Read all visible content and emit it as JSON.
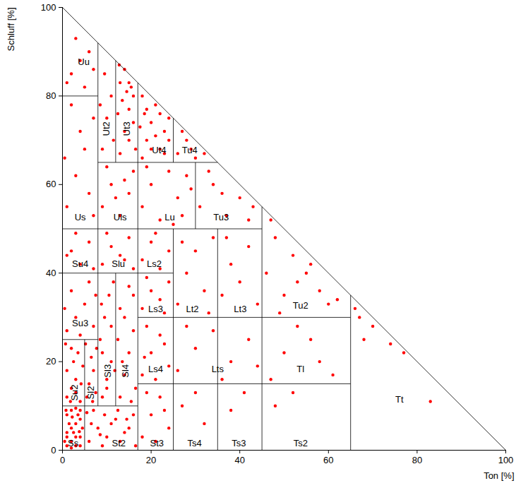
{
  "chart_data": {
    "type": "scatter",
    "xlabel": "Ton [%]",
    "ylabel": "Schluff [%]",
    "xlim": [
      0,
      100
    ],
    "ylim": [
      0,
      100
    ],
    "xticks": [
      0,
      20,
      40,
      60,
      80,
      100
    ],
    "yticks": [
      0,
      20,
      40,
      60,
      80,
      100
    ],
    "color": "#ff0000",
    "marker": "circle",
    "points": [
      [
        1,
        1
      ],
      [
        2,
        2
      ],
      [
        3,
        1
      ],
      [
        4,
        3
      ],
      [
        1,
        4
      ],
      [
        2,
        5
      ],
      [
        3,
        6
      ],
      [
        4,
        7
      ],
      [
        1,
        8
      ],
      [
        2,
        9
      ],
      [
        3,
        3
      ],
      [
        0.5,
        2
      ],
      [
        4,
        1
      ],
      [
        2.5,
        4
      ],
      [
        3.5,
        8
      ],
      [
        1.5,
        6
      ],
      [
        0.8,
        9
      ],
      [
        4.5,
        5
      ],
      [
        2,
        0.5
      ],
      [
        3,
        9.5
      ],
      [
        1,
        3
      ],
      [
        4,
        9
      ],
      [
        2.2,
        7.5
      ],
      [
        3.8,
        4.2
      ],
      [
        1,
        12
      ],
      [
        2,
        14
      ],
      [
        3,
        16
      ],
      [
        4,
        11
      ],
      [
        1,
        18
      ],
      [
        2.5,
        20
      ],
      [
        3.5,
        22
      ],
      [
        4.2,
        15
      ],
      [
        0.7,
        24
      ],
      [
        1.8,
        11
      ],
      [
        3,
        13
      ],
      [
        4.6,
        19
      ],
      [
        2,
        23
      ],
      [
        5.5,
        12
      ],
      [
        6,
        15
      ],
      [
        7,
        18
      ],
      [
        6.5,
        21
      ],
      [
        7.5,
        13
      ],
      [
        5.2,
        24
      ],
      [
        6.8,
        11
      ],
      [
        7.7,
        23
      ],
      [
        1,
        27
      ],
      [
        3,
        30
      ],
      [
        5,
        33
      ],
      [
        7,
        28
      ],
      [
        2,
        36
      ],
      [
        6,
        38
      ],
      [
        4,
        26
      ],
      [
        0.5,
        32
      ],
      [
        7.5,
        35
      ],
      [
        1,
        44
      ],
      [
        4,
        42
      ],
      [
        6,
        47
      ],
      [
        3,
        49
      ],
      [
        7,
        41
      ],
      [
        2,
        45
      ],
      [
        1,
        55
      ],
      [
        3,
        62
      ],
      [
        5,
        68
      ],
      [
        7,
        75
      ],
      [
        2,
        78
      ],
      [
        6,
        58
      ],
      [
        0.5,
        66
      ],
      [
        4,
        72
      ],
      [
        7,
        53
      ],
      [
        2,
        85
      ],
      [
        4,
        88
      ],
      [
        6,
        90
      ],
      [
        3,
        93
      ],
      [
        5,
        82
      ],
      [
        7,
        86
      ],
      [
        1,
        83
      ],
      [
        6,
        2
      ],
      [
        8,
        5
      ],
      [
        10,
        3
      ],
      [
        12,
        7
      ],
      [
        14,
        4
      ],
      [
        16,
        8
      ],
      [
        7,
        9
      ],
      [
        9,
        1
      ],
      [
        11,
        6
      ],
      [
        13,
        2
      ],
      [
        15,
        5
      ],
      [
        6.5,
        6
      ],
      [
        9.5,
        8
      ],
      [
        12.5,
        9
      ],
      [
        16.5,
        1
      ],
      [
        8.5,
        3.5
      ],
      [
        5.5,
        8.5
      ],
      [
        14.5,
        7
      ],
      [
        9,
        12
      ],
      [
        10,
        16
      ],
      [
        11,
        20
      ],
      [
        8.5,
        25
      ],
      [
        9.5,
        30
      ],
      [
        10.5,
        35
      ],
      [
        11.5,
        38
      ],
      [
        9,
        22
      ],
      [
        11,
        28
      ],
      [
        10,
        14
      ],
      [
        8.8,
        33
      ],
      [
        11.8,
        18
      ],
      [
        13,
        12
      ],
      [
        14,
        17
      ],
      [
        15,
        22
      ],
      [
        16,
        27
      ],
      [
        13,
        32
      ],
      [
        15,
        37
      ],
      [
        16.5,
        14
      ],
      [
        12.5,
        25
      ],
      [
        14,
        30
      ],
      [
        16,
        35
      ],
      [
        13.5,
        20
      ],
      [
        15.5,
        11
      ],
      [
        9,
        42
      ],
      [
        11,
        46
      ],
      [
        13,
        44
      ],
      [
        15,
        48
      ],
      [
        16,
        41
      ],
      [
        10,
        49
      ],
      [
        14,
        43
      ],
      [
        9,
        55
      ],
      [
        11,
        60
      ],
      [
        13,
        53
      ],
      [
        15,
        58
      ],
      [
        16,
        63
      ],
      [
        10,
        64
      ],
      [
        12,
        57
      ],
      [
        14,
        61
      ],
      [
        9,
        68
      ],
      [
        10,
        75
      ],
      [
        11,
        80
      ],
      [
        9.5,
        85
      ],
      [
        11.5,
        70
      ],
      [
        8.5,
        78
      ],
      [
        13,
        67
      ],
      [
        14,
        72
      ],
      [
        15,
        77
      ],
      [
        16,
        80
      ],
      [
        13,
        83
      ],
      [
        14,
        86
      ],
      [
        15,
        70
      ],
      [
        16,
        74
      ],
      [
        12.5,
        76
      ],
      [
        13.5,
        79
      ],
      [
        15.5,
        82
      ],
      [
        16.5,
        68
      ],
      [
        14.5,
        81
      ],
      [
        12.8,
        87
      ],
      [
        15,
        83
      ],
      [
        18,
        66
      ],
      [
        19,
        70
      ],
      [
        20,
        74
      ],
      [
        21,
        78
      ],
      [
        18,
        80
      ],
      [
        22,
        68
      ],
      [
        23,
        72
      ],
      [
        24,
        75
      ],
      [
        19,
        77
      ],
      [
        20,
        68
      ],
      [
        21,
        71
      ],
      [
        22,
        76
      ],
      [
        17.5,
        73
      ],
      [
        18.5,
        76
      ],
      [
        23,
        67
      ],
      [
        24,
        70
      ],
      [
        18,
        17
      ],
      [
        20,
        22
      ],
      [
        22,
        26
      ],
      [
        24,
        19
      ],
      [
        19,
        28
      ],
      [
        21,
        16
      ],
      [
        23,
        24
      ],
      [
        18.5,
        21
      ],
      [
        18,
        32
      ],
      [
        20,
        36
      ],
      [
        22,
        34
      ],
      [
        24,
        38
      ],
      [
        19,
        39
      ],
      [
        23,
        31
      ],
      [
        18,
        43
      ],
      [
        20,
        47
      ],
      [
        22,
        41
      ],
      [
        24,
        45
      ],
      [
        21,
        49
      ],
      [
        18,
        3
      ],
      [
        20,
        8
      ],
      [
        22,
        12
      ],
      [
        24,
        5
      ],
      [
        19,
        13
      ],
      [
        23,
        9
      ],
      [
        21,
        2
      ],
      [
        18,
        55
      ],
      [
        20,
        60
      ],
      [
        22,
        52
      ],
      [
        24,
        63
      ],
      [
        26,
        57
      ],
      [
        28,
        62
      ],
      [
        27,
        53
      ],
      [
        29,
        59
      ],
      [
        19,
        64
      ],
      [
        25,
        51
      ],
      [
        26,
        67
      ],
      [
        28,
        70
      ],
      [
        30,
        66
      ],
      [
        32,
        67
      ],
      [
        27,
        72
      ],
      [
        29,
        68
      ],
      [
        31,
        55
      ],
      [
        34,
        60
      ],
      [
        37,
        53
      ],
      [
        40,
        57
      ],
      [
        42,
        52
      ],
      [
        33,
        63
      ],
      [
        36,
        58
      ],
      [
        43,
        55
      ],
      [
        26,
        33
      ],
      [
        28,
        40
      ],
      [
        30,
        45
      ],
      [
        32,
        36
      ],
      [
        34,
        48
      ],
      [
        27,
        47
      ],
      [
        33,
        31
      ],
      [
        36,
        35
      ],
      [
        38,
        42
      ],
      [
        40,
        38
      ],
      [
        42,
        46
      ],
      [
        44,
        33
      ],
      [
        37,
        48
      ],
      [
        26,
        18
      ],
      [
        30,
        23
      ],
      [
        34,
        27
      ],
      [
        38,
        20
      ],
      [
        42,
        25
      ],
      [
        28,
        28
      ],
      [
        36,
        16
      ],
      [
        44,
        19
      ],
      [
        27,
        10
      ],
      [
        32,
        6
      ],
      [
        30,
        13
      ],
      [
        38,
        9
      ],
      [
        41,
        13
      ],
      [
        46,
        40
      ],
      [
        48,
        48
      ],
      [
        50,
        35
      ],
      [
        52,
        44
      ],
      [
        55,
        40
      ],
      [
        58,
        36
      ],
      [
        60,
        33
      ],
      [
        62,
        34
      ],
      [
        47,
        52
      ],
      [
        53,
        38
      ],
      [
        56,
        42
      ],
      [
        49,
        31
      ],
      [
        47,
        16
      ],
      [
        50,
        22
      ],
      [
        53,
        28
      ],
      [
        56,
        25
      ],
      [
        61,
        17
      ],
      [
        58,
        20
      ],
      [
        48,
        10
      ],
      [
        52,
        13
      ],
      [
        66,
        32
      ],
      [
        67,
        30
      ],
      [
        70,
        28
      ],
      [
        74,
        24
      ],
      [
        77,
        22
      ],
      [
        83,
        11
      ],
      [
        68,
        25
      ]
    ],
    "boundaries": [
      [
        0,
        100,
        100,
        0
      ],
      [
        0,
        80,
        8,
        80
      ],
      [
        8,
        65,
        35,
        65
      ],
      [
        0,
        50,
        45,
        50
      ],
      [
        0,
        40,
        25,
        40
      ],
      [
        17,
        30,
        65,
        30
      ],
      [
        0,
        25,
        8,
        25
      ],
      [
        17,
        15,
        65,
        15
      ],
      [
        0,
        10,
        17,
        10
      ],
      [
        5,
        0,
        5,
        25
      ],
      [
        8,
        10,
        8,
        92
      ],
      [
        12,
        10,
        12,
        40
      ],
      [
        12,
        65,
        12,
        88
      ],
      [
        17,
        0,
        17,
        83
      ],
      [
        25,
        0,
        25,
        50
      ],
      [
        25,
        65,
        25,
        75
      ],
      [
        30,
        50,
        30,
        65
      ],
      [
        35,
        0,
        35,
        50
      ],
      [
        45,
        0,
        45,
        55
      ],
      [
        65,
        0,
        65,
        35
      ]
    ],
    "class_labels": [
      {
        "text": "Uu",
        "x": 4.8,
        "y": 87.7
      },
      {
        "text": "Ut2",
        "x": 9.9,
        "y": 72.6,
        "orientation": "vertical"
      },
      {
        "text": "Ut3",
        "x": 14.6,
        "y": 72.6,
        "orientation": "vertical"
      },
      {
        "text": "Ut4",
        "x": 21.8,
        "y": 67.8
      },
      {
        "text": "Tu4",
        "x": 28.7,
        "y": 67.8
      },
      {
        "text": "Us",
        "x": 4,
        "y": 52.5
      },
      {
        "text": "Uls",
        "x": 13,
        "y": 52.5
      },
      {
        "text": "Lu",
        "x": 24.2,
        "y": 52.5
      },
      {
        "text": "Tu3",
        "x": 35.8,
        "y": 52.5
      },
      {
        "text": "Su4",
        "x": 4,
        "y": 42
      },
      {
        "text": "Slu",
        "x": 12.6,
        "y": 42
      },
      {
        "text": "Ls2",
        "x": 20.7,
        "y": 42
      },
      {
        "text": "Su3",
        "x": 4,
        "y": 28.7
      },
      {
        "text": "Ls3",
        "x": 21,
        "y": 31.9
      },
      {
        "text": "Lt2",
        "x": 29.3,
        "y": 31.9
      },
      {
        "text": "Lt3",
        "x": 40.1,
        "y": 31.9
      },
      {
        "text": "Tu2",
        "x": 53.7,
        "y": 32.7
      },
      {
        "text": "Su2",
        "x": 2.7,
        "y": 13,
        "orientation": "vertical"
      },
      {
        "text": "Sl2",
        "x": 6.4,
        "y": 13,
        "orientation": "vertical"
      },
      {
        "text": "Sl3",
        "x": 10.2,
        "y": 17.9,
        "orientation": "vertical"
      },
      {
        "text": "Sl4",
        "x": 14.3,
        "y": 17.9,
        "orientation": "vertical"
      },
      {
        "text": "Ls4",
        "x": 21,
        "y": 18.3
      },
      {
        "text": "Lts",
        "x": 35,
        "y": 18.3
      },
      {
        "text": "Tl",
        "x": 53.7,
        "y": 18.3
      },
      {
        "text": "Tt",
        "x": 76,
        "y": 11.5
      },
      {
        "text": "Ss",
        "x": 2.4,
        "y": 1.6
      },
      {
        "text": "St2",
        "x": 12.7,
        "y": 1.6
      },
      {
        "text": "St3",
        "x": 21.3,
        "y": 1.6
      },
      {
        "text": "Ts4",
        "x": 29.8,
        "y": 1.6
      },
      {
        "text": "Ts3",
        "x": 39.8,
        "y": 1.6
      },
      {
        "text": "Ts2",
        "x": 53.7,
        "y": 1.6
      }
    ]
  }
}
